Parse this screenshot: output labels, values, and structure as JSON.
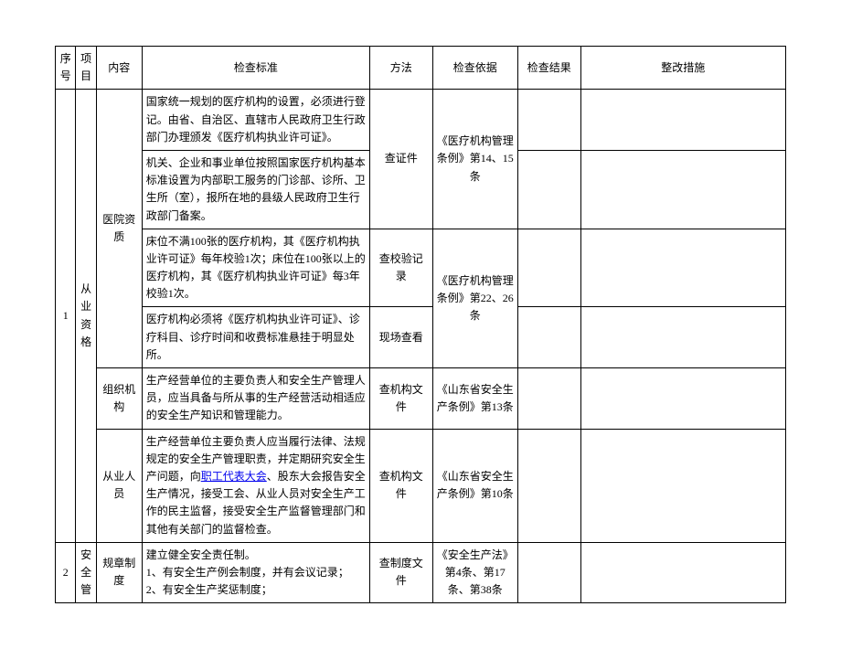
{
  "headers": {
    "seq": "序号",
    "proj": "项目",
    "cont": "内容",
    "std": "检查标准",
    "meth": "方法",
    "basis": "检查依据",
    "res": "检查结果",
    "rect": "整改措施"
  },
  "r1": {
    "seq": "1",
    "proj": "从业资格",
    "cont1": "医院资质",
    "std1": "国家统一规划的医疗机构的设置，必须进行登记。由省、自治区、直辖市人民政府卫生行政部门办理颁发《医疗机构执业许可证》。",
    "meth1": "查证件",
    "basis1": "《医疗机构管理条例》第14、15条",
    "std2": "机关、企业和事业单位按照国家医疗机构基本标准设置为内部职工服务的门诊部、诊所、卫生所（室），报所在地的县级人民政府卫生行政部门备案。",
    "std3": "床位不满100张的医疗机构，其《医疗机构执业许可证》每年校验1次；床位在100张以上的医疗机构，其《医疗机构执业许可证》每3年校验1次。",
    "meth3": "查校验记录",
    "basis3": "《医疗机构管理条例》第22、26条",
    "std4": "医疗机构必须将《医疗机构执业许可证》、诊疗科目、诊疗时间和收费标准悬挂于明显处所。",
    "meth4": "现场查看",
    "cont5": "组织机构",
    "std5": "生产经营单位的主要负责人和安全生产管理人员，应当具备与所从事的生产经营活动相适应的安全生产知识和管理能力。",
    "meth5": "查机构文件",
    "basis5": "《山东省安全生产条例》第13条",
    "cont6": "从业人员",
    "std6_pre": "生产经营单位主要负责人应当履行法律、法规规定的安全生产管理职责，并定期研究安全生产问题，向",
    "std6_link": "职工代表大会",
    "std6_post": "、股东大会报告安全生产情况，接受工会、从业人员对安全生产工作的民主监督，接受安全生产监督管理部门和其他有关部门的监督检查。",
    "meth6": "查机构文件",
    "basis6": "《山东省安全生产条例》第10条"
  },
  "r2": {
    "seq": "2",
    "proj": "安全管",
    "cont": "规章制度",
    "std_a": "建立健全安全责任制。",
    "std_b": "1、有安全生产例会制度，并有会议记录；",
    "std_c": "2、有安全生产奖惩制度；",
    "meth": "查制度文件",
    "basis": "《安全生产法》第4条、第17条、第38条"
  }
}
